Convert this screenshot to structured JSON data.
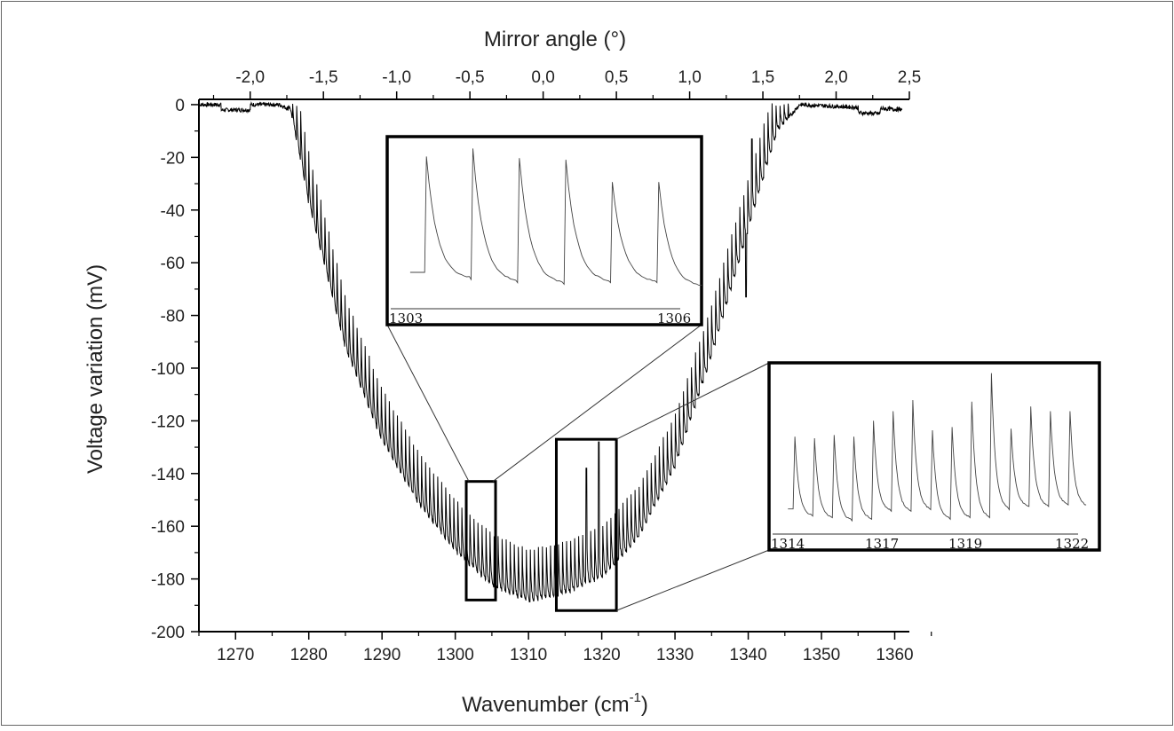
{
  "chart_data": {
    "type": "line",
    "xlabel_main": "Wavenumber (cm",
    "xlabel_sup": "-1",
    "xlabel_close": ")",
    "ylabel": "Voltage variation (mV)",
    "x2label": "Mirror angle (°)",
    "xlim": [
      1265,
      1362
    ],
    "ylim": [
      -200,
      2
    ],
    "x_ticks": [
      1270,
      1280,
      1290,
      1300,
      1310,
      1320,
      1330,
      1340,
      1350,
      1360
    ],
    "y_ticks": [
      0,
      -20,
      -40,
      -60,
      -80,
      -100,
      -120,
      -140,
      -160,
      -180,
      -200
    ],
    "x2_ticks": [
      {
        "label": "-2,0",
        "wavenumber": 1272
      },
      {
        "label": "-1,5",
        "wavenumber": 1282
      },
      {
        "label": "-1,0",
        "wavenumber": 1292
      },
      {
        "label": "-0,5",
        "wavenumber": 1302
      },
      {
        "label": "0,0",
        "wavenumber": 1312
      },
      {
        "label": "0,5",
        "wavenumber": 1322
      },
      {
        "label": "1,0",
        "wavenumber": 1332
      },
      {
        "label": "1,5",
        "wavenumber": 1342
      },
      {
        "label": "2,0",
        "wavenumber": 1352
      },
      {
        "label": "2,5",
        "wavenumber": 1362
      }
    ],
    "series": [
      {
        "envelope_minimum_mV": [
          [
            1265,
            0
          ],
          [
            1276,
            0
          ],
          [
            1277.5,
            -2
          ],
          [
            1280,
            -38
          ],
          [
            1285,
            -93
          ],
          [
            1290,
            -128
          ],
          [
            1295,
            -152
          ],
          [
            1300,
            -170
          ],
          [
            1305,
            -183
          ],
          [
            1310,
            -189
          ],
          [
            1315,
            -186
          ],
          [
            1320,
            -180
          ],
          [
            1325,
            -165
          ],
          [
            1330,
            -138
          ],
          [
            1335,
            -96
          ],
          [
            1340,
            -48
          ],
          [
            1344,
            -10
          ],
          [
            1347,
            0
          ],
          [
            1362,
            -2
          ]
        ],
        "peak_spacing_cm-1": 0.55,
        "peak_height_mV": 16,
        "notable_spikes": [
          [
            1317.9,
            -138
          ],
          [
            1319.6,
            -128
          ],
          [
            1339.7,
            -73
          ],
          [
            1340.5,
            -13
          ]
        ]
      }
    ],
    "zoom_regions": [
      {
        "x_range": [
          1301.5,
          1305.5
        ],
        "y_range": [
          -188,
          -143
        ]
      },
      {
        "x_range": [
          1313.8,
          1322
        ],
        "y_range": [
          -192,
          -127
        ]
      }
    ],
    "insets": [
      {
        "tick_labels": [
          "1303",
          "1306"
        ],
        "peak_count": 6,
        "peak_levels": [
          0.08,
          0.03,
          0.09,
          0.1,
          0.24,
          0.24
        ],
        "trough_levels": [
          0.85,
          0.87,
          0.88,
          0.87,
          0.87,
          0.9
        ]
      },
      {
        "tick_labels": [
          "1314",
          "1317",
          "1319",
          "1322"
        ],
        "peak_count": 15,
        "peak_levels": [
          0.42,
          0.43,
          0.41,
          0.42,
          0.32,
          0.26,
          0.19,
          0.38,
          0.36,
          0.2,
          0.02,
          0.37,
          0.23,
          0.26,
          0.26
        ],
        "trough_levels": [
          0.92,
          0.93,
          0.95,
          0.94,
          0.89,
          0.89,
          0.88,
          0.94,
          0.93,
          0.93,
          0.88,
          0.86,
          0.86,
          0.85,
          0.86
        ]
      }
    ],
    "grid": false,
    "legend": "none"
  }
}
